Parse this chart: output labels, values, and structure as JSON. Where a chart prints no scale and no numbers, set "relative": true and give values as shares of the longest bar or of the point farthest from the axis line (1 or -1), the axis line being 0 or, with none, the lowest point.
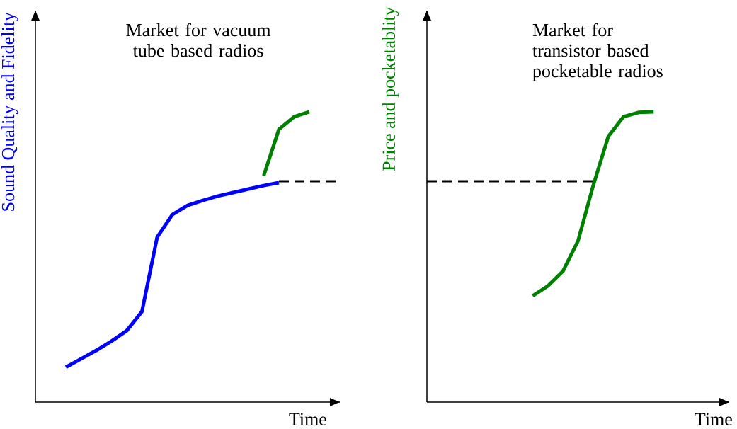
{
  "chart_data": [
    {
      "type": "line",
      "relative": true,
      "title": "Market for vacuum tube based radios",
      "xlabel": "Time",
      "ylabel": "Sound Quality and Fidelity",
      "marker": "none",
      "categories": [
        null,
        null,
        null,
        null,
        null,
        null,
        null,
        null,
        null,
        null,
        null,
        null,
        null,
        null,
        null,
        null,
        null,
        null,
        null,
        null,
        null
      ],
      "series": [
        {
          "color": "#0000ff",
          "line_style": "solid",
          "values": [
            null,
            null,
            0.12,
            0.149,
            0.178,
            0.21,
            0.246,
            0.312,
            0.568,
            0.646,
            0.678,
            0.695,
            0.71,
            0.722,
            0.734,
            0.746,
            0.756,
            null,
            null,
            null,
            null
          ]
        },
        {
          "color": "#008000",
          "line_style": "solid",
          "values": [
            null,
            null,
            null,
            null,
            null,
            null,
            null,
            null,
            null,
            null,
            null,
            null,
            null,
            null,
            null,
            0.78,
            0.94,
            0.983,
            1.0,
            null,
            null
          ]
        },
        {
          "color": "#000000",
          "line_style": "dashed",
          "values": [
            null,
            null,
            null,
            null,
            null,
            null,
            null,
            null,
            null,
            null,
            null,
            null,
            null,
            null,
            null,
            null,
            0.761,
            0.761,
            0.761,
            0.761,
            0.761
          ]
        }
      ]
    },
    {
      "type": "line",
      "relative": true,
      "title": "Market for transistor based pocketable radios",
      "xlabel": "Time",
      "ylabel": "Price and pocketablity",
      "marker": "none",
      "categories": [
        null,
        null,
        null,
        null,
        null,
        null,
        null,
        null,
        null,
        null,
        null,
        null,
        null,
        null,
        null,
        null,
        null,
        null,
        null,
        null,
        null
      ],
      "series": [
        {
          "color": "#008000",
          "line_style": "solid",
          "values": [
            null,
            null,
            null,
            null,
            null,
            null,
            null,
            0.366,
            0.4,
            0.451,
            0.556,
            0.746,
            0.915,
            0.983,
            0.998,
            1.0,
            null,
            null,
            null,
            null,
            null
          ]
        },
        {
          "color": "#000000",
          "line_style": "dashed",
          "values": [
            0.761,
            0.761,
            0.761,
            0.761,
            0.761,
            0.761,
            0.761,
            0.761,
            0.761,
            0.761,
            0.761,
            0.761,
            null,
            null,
            null,
            null,
            null,
            null,
            null,
            null,
            null
          ]
        }
      ]
    }
  ]
}
